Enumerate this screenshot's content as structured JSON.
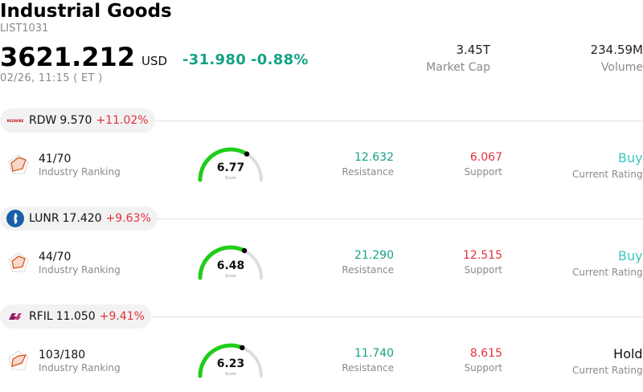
{
  "header": {
    "title": "Industrial Goods",
    "code": "LIST1031",
    "price": "3621.212",
    "currency": "USD",
    "change": "-31.980",
    "change_pct": "-0.88%",
    "timestamp": "02/26, 11:15  ( ET )"
  },
  "stats": {
    "market_cap": {
      "value": "3.45T",
      "label": "Market Cap"
    },
    "volume": {
      "value": "234.59M",
      "label": "Volume"
    }
  },
  "colors": {
    "up_green": "#15a286",
    "down_red": "#e0323c",
    "gauge_green": "#22cc1a",
    "gauge_track": "#dcdce4",
    "buy": "#3cc6c4",
    "hold": "#111111"
  },
  "stocks": [
    {
      "ticker": "RDW",
      "price": "9.570",
      "change_pct": "+11.02%",
      "logo_icon": "rdw-logo-icon",
      "ranking": "41/70",
      "ranking_label": "Industry Ranking",
      "score": "6.77",
      "score_value": 6.77,
      "score_label": "Score",
      "resistance": "12.632",
      "resistance_label": "Resistance",
      "support": "6.067",
      "support_label": "Support",
      "rating": "Buy",
      "rating_label": "Current Rating",
      "rating_color": "#3cc6c4"
    },
    {
      "ticker": "LUNR",
      "price": "17.420",
      "change_pct": "+9.63%",
      "logo_icon": "lunr-logo-icon",
      "ranking": "44/70",
      "ranking_label": "Industry Ranking",
      "score": "6.48",
      "score_value": 6.48,
      "score_label": "Score",
      "resistance": "21.290",
      "resistance_label": "Resistance",
      "support": "12.515",
      "support_label": "Support",
      "rating": "Buy",
      "rating_label": "Current Rating",
      "rating_color": "#3cc6c4"
    },
    {
      "ticker": "RFIL",
      "price": "11.050",
      "change_pct": "+9.41%",
      "logo_icon": "rfil-logo-icon",
      "ranking": "103/180",
      "ranking_label": "Industry Ranking",
      "score": "6.23",
      "score_value": 6.23,
      "score_label": "Score",
      "resistance": "11.740",
      "resistance_label": "Resistance",
      "support": "8.615",
      "support_label": "Support",
      "rating": "Hold",
      "rating_label": "Current Rating",
      "rating_color": "#111111"
    }
  ]
}
